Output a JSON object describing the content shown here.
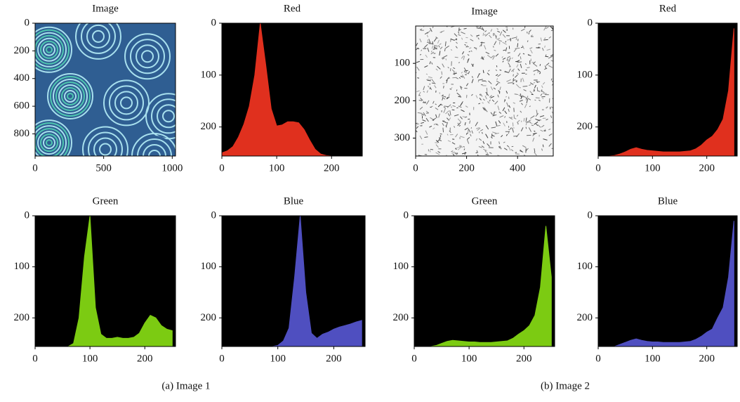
{
  "chart_data": [
    {
      "type": "image",
      "title": "Image",
      "xlim": [
        0,
        1024
      ],
      "ylim": [
        0,
        960
      ],
      "xticks": [
        0,
        500,
        1000
      ],
      "yticks": [
        0,
        200,
        400,
        600,
        800
      ],
      "y_inverted": true,
      "palette": [
        "#2f5e92",
        "#a8e0ee",
        "#4fc7b0"
      ]
    },
    {
      "type": "area",
      "title": "Red",
      "xlim": [
        0,
        256
      ],
      "ylim": [
        0,
        256
      ],
      "xticks": [
        0,
        100,
        200
      ],
      "yticks": [
        0,
        100,
        200
      ],
      "y_inverted": true,
      "facecolor": "#000000",
      "x": [
        0,
        10,
        20,
        30,
        40,
        50,
        60,
        70,
        80,
        90,
        100,
        110,
        120,
        130,
        140,
        150,
        160,
        170,
        180,
        190,
        200,
        210,
        220,
        230,
        240,
        250
      ],
      "series": [
        {
          "color": "#e0301e",
          "values": [
            250,
            246,
            238,
            220,
            195,
            160,
            100,
            0,
            80,
            165,
            198,
            196,
            190,
            190,
            192,
            205,
            225,
            243,
            252,
            255,
            256,
            256,
            256,
            256,
            256,
            256
          ]
        }
      ]
    },
    {
      "type": "image",
      "title": "Image",
      "xlim": [
        0,
        540
      ],
      "ylim": [
        0,
        348
      ],
      "xticks": [
        0,
        200,
        400
      ],
      "yticks": [
        100,
        200,
        300
      ],
      "y_inverted": true,
      "palette": [
        "#f4f4f4",
        "#3a3a3a"
      ]
    },
    {
      "type": "area",
      "title": "Red",
      "xlim": [
        0,
        256
      ],
      "ylim": [
        0,
        256
      ],
      "xticks": [
        0,
        100,
        200
      ],
      "yticks": [
        0,
        100,
        200
      ],
      "y_inverted": true,
      "facecolor": "#000000",
      "x": [
        0,
        10,
        20,
        30,
        40,
        50,
        60,
        70,
        80,
        90,
        100,
        110,
        120,
        130,
        140,
        150,
        160,
        170,
        180,
        190,
        200,
        210,
        220,
        230,
        240,
        250
      ],
      "series": [
        {
          "color": "#e0301e",
          "values": [
            256,
            256,
            256,
            255,
            252,
            248,
            243,
            240,
            243,
            245,
            246,
            247,
            248,
            248,
            248,
            248,
            247,
            246,
            242,
            235,
            225,
            218,
            205,
            185,
            130,
            10
          ]
        }
      ]
    },
    {
      "type": "area",
      "title": "Green",
      "xlim": [
        0,
        256
      ],
      "ylim": [
        0,
        256
      ],
      "xticks": [
        0,
        100,
        200
      ],
      "yticks": [
        0,
        100,
        200
      ],
      "y_inverted": true,
      "facecolor": "#000000",
      "x": [
        0,
        10,
        20,
        30,
        40,
        50,
        60,
        70,
        80,
        90,
        100,
        110,
        120,
        130,
        140,
        150,
        160,
        170,
        180,
        190,
        200,
        210,
        220,
        230,
        240,
        250
      ],
      "series": [
        {
          "color": "#7ccb12",
          "values": [
            256,
            256,
            256,
            256,
            256,
            256,
            256,
            250,
            200,
            80,
            0,
            180,
            232,
            240,
            240,
            238,
            240,
            240,
            238,
            230,
            210,
            195,
            200,
            215,
            222,
            225
          ]
        }
      ]
    },
    {
      "type": "area",
      "title": "Blue",
      "xlim": [
        0,
        256
      ],
      "ylim": [
        0,
        256
      ],
      "xticks": [
        0,
        100,
        200
      ],
      "yticks": [
        0,
        100,
        200
      ],
      "y_inverted": true,
      "facecolor": "#000000",
      "x": [
        0,
        10,
        20,
        30,
        40,
        50,
        60,
        70,
        80,
        90,
        100,
        110,
        120,
        130,
        140,
        150,
        160,
        170,
        180,
        190,
        200,
        210,
        220,
        230,
        240,
        250
      ],
      "series": [
        {
          "color": "#4f4fc0",
          "values": [
            256,
            256,
            256,
            256,
            256,
            256,
            256,
            256,
            256,
            256,
            254,
            245,
            220,
            120,
            0,
            150,
            230,
            240,
            232,
            228,
            222,
            218,
            215,
            212,
            208,
            205
          ]
        }
      ]
    },
    {
      "type": "area",
      "title": "Green",
      "xlim": [
        0,
        256
      ],
      "ylim": [
        0,
        256
      ],
      "xticks": [
        0,
        100,
        200
      ],
      "yticks": [
        0,
        100,
        200
      ],
      "y_inverted": true,
      "facecolor": "#000000",
      "x": [
        0,
        10,
        20,
        30,
        40,
        50,
        60,
        70,
        80,
        90,
        100,
        110,
        120,
        130,
        140,
        150,
        160,
        170,
        180,
        190,
        200,
        210,
        220,
        230,
        240,
        250
      ],
      "series": [
        {
          "color": "#7ccb12",
          "values": [
            256,
            256,
            256,
            256,
            254,
            250,
            246,
            244,
            245,
            246,
            247,
            247,
            248,
            248,
            248,
            247,
            246,
            245,
            240,
            232,
            225,
            215,
            195,
            140,
            20,
            120
          ]
        }
      ]
    },
    {
      "type": "area",
      "title": "Blue",
      "xlim": [
        0,
        256
      ],
      "ylim": [
        0,
        256
      ],
      "xticks": [
        0,
        100,
        200
      ],
      "yticks": [
        0,
        100,
        200
      ],
      "y_inverted": true,
      "facecolor": "#000000",
      "x": [
        0,
        10,
        20,
        30,
        40,
        50,
        60,
        70,
        80,
        90,
        100,
        110,
        120,
        130,
        140,
        150,
        160,
        170,
        180,
        190,
        200,
        210,
        220,
        230,
        240,
        250
      ],
      "series": [
        {
          "color": "#4f4fc0",
          "values": [
            256,
            256,
            256,
            256,
            252,
            248,
            244,
            241,
            244,
            246,
            247,
            247,
            248,
            248,
            248,
            248,
            247,
            246,
            242,
            236,
            228,
            222,
            200,
            180,
            120,
            10
          ]
        }
      ]
    }
  ],
  "captions": [
    "(a) Image 1",
    "(b) Image 2"
  ]
}
